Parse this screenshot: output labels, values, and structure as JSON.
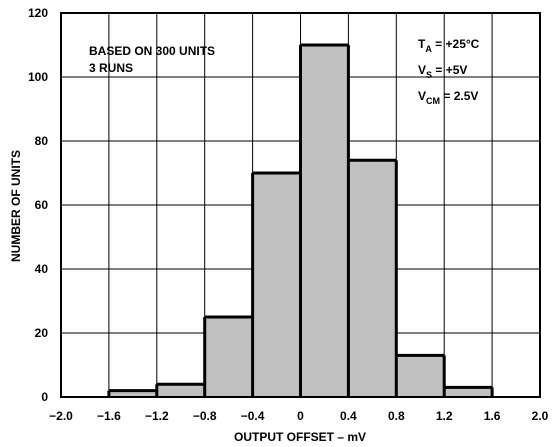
{
  "chart_data": {
    "type": "bar",
    "xlabel": "OUTPUT OFFSET – mV",
    "ylabel": "NUMBER OF UNITS",
    "xlim": [
      -2.0,
      2.0
    ],
    "ylim": [
      0,
      120
    ],
    "grid": true,
    "x_ticks": [
      "−2.0",
      "−1.6",
      "−1.2",
      "−0.8",
      "−0.4",
      "0",
      "0.4",
      "0.8",
      "1.2",
      "1.6",
      "2.0"
    ],
    "y_ticks": [
      "0",
      "20",
      "40",
      "60",
      "80",
      "100",
      "120"
    ],
    "bins": [
      {
        "from": -1.6,
        "to": -1.2,
        "value": 2
      },
      {
        "from": -1.2,
        "to": -0.8,
        "value": 4
      },
      {
        "from": -0.8,
        "to": -0.4,
        "value": 25
      },
      {
        "from": -0.4,
        "to": 0.0,
        "value": 70
      },
      {
        "from": 0.0,
        "to": 0.4,
        "value": 110
      },
      {
        "from": 0.4,
        "to": 0.8,
        "value": 74
      },
      {
        "from": 0.8,
        "to": 1.2,
        "value": 13
      },
      {
        "from": 1.2,
        "to": 1.6,
        "value": 3
      }
    ],
    "bar_color": "#c0c0c0",
    "annotations": {
      "left": [
        "BASED ON 300 UNITS",
        "3 RUNS"
      ],
      "conditions": [
        {
          "main": "T",
          "sub": "A",
          "rest": " = +25°C"
        },
        {
          "main": "V",
          "sub": "S",
          "rest": " = +5V"
        },
        {
          "main": "V",
          "sub": "CM",
          "rest": " = 2.5V"
        }
      ]
    }
  }
}
